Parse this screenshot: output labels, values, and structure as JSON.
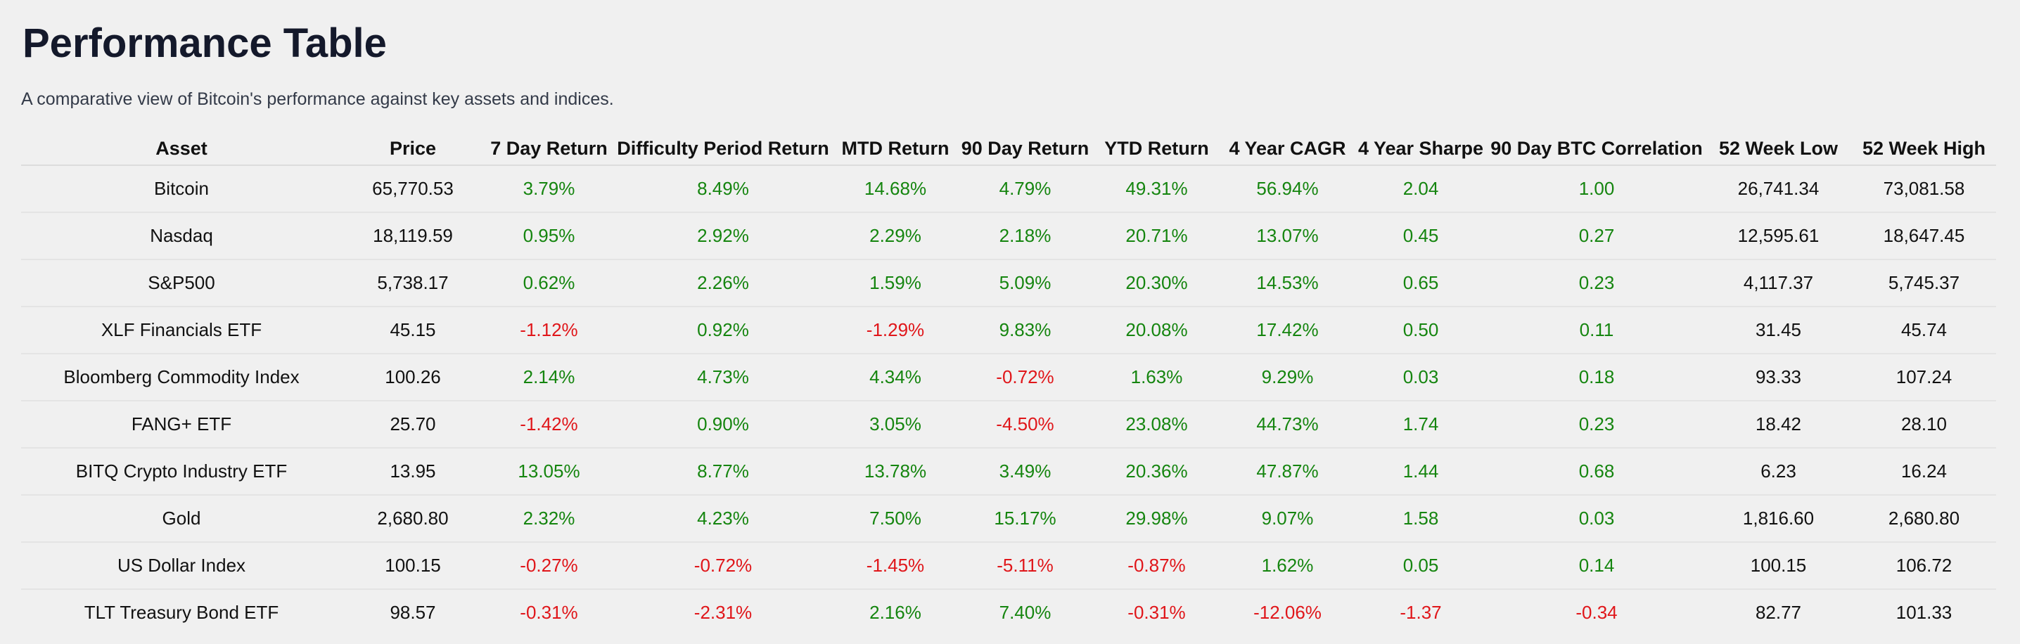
{
  "header": {
    "title": "Performance Table",
    "subtitle": "A comparative view of Bitcoin's performance against key assets and indices."
  },
  "table": {
    "columns": [
      "Asset",
      "Price",
      "7 Day Return",
      "Difficulty Period Return",
      "MTD Return",
      "90 Day Return",
      "YTD Return",
      "4 Year CAGR",
      "4 Year Sharpe",
      "90 Day BTC Correlation",
      "52 Week Low",
      "52 Week High"
    ],
    "rows": [
      [
        "Bitcoin",
        "65,770.53",
        "3.79%",
        "8.49%",
        "14.68%",
        "4.79%",
        "49.31%",
        "56.94%",
        "2.04",
        "1.00",
        "26,741.34",
        "73,081.58"
      ],
      [
        "Nasdaq",
        "18,119.59",
        "0.95%",
        "2.92%",
        "2.29%",
        "2.18%",
        "20.71%",
        "13.07%",
        "0.45",
        "0.27",
        "12,595.61",
        "18,647.45"
      ],
      [
        "S&P500",
        "5,738.17",
        "0.62%",
        "2.26%",
        "1.59%",
        "5.09%",
        "20.30%",
        "14.53%",
        "0.65",
        "0.23",
        "4,117.37",
        "5,745.37"
      ],
      [
        "XLF Financials ETF",
        "45.15",
        "-1.12%",
        "0.92%",
        "-1.29%",
        "9.83%",
        "20.08%",
        "17.42%",
        "0.50",
        "0.11",
        "31.45",
        "45.74"
      ],
      [
        "Bloomberg Commodity Index",
        "100.26",
        "2.14%",
        "4.73%",
        "4.34%",
        "-0.72%",
        "1.63%",
        "9.29%",
        "0.03",
        "0.18",
        "93.33",
        "107.24"
      ],
      [
        "FANG+ ETF",
        "25.70",
        "-1.42%",
        "0.90%",
        "3.05%",
        "-4.50%",
        "23.08%",
        "44.73%",
        "1.74",
        "0.23",
        "18.42",
        "28.10"
      ],
      [
        "BITQ Crypto Industry ETF",
        "13.95",
        "13.05%",
        "8.77%",
        "13.78%",
        "3.49%",
        "20.36%",
        "47.87%",
        "1.44",
        "0.68",
        "6.23",
        "16.24"
      ],
      [
        "Gold",
        "2,680.80",
        "2.32%",
        "4.23%",
        "7.50%",
        "15.17%",
        "29.98%",
        "9.07%",
        "1.58",
        "0.03",
        "1,816.60",
        "2,680.80"
      ],
      [
        "US Dollar Index",
        "100.15",
        "-0.27%",
        "-0.72%",
        "-1.45%",
        "-5.11%",
        "-0.87%",
        "1.62%",
        "0.05",
        "0.14",
        "100.15",
        "106.72"
      ],
      [
        "TLT Treasury Bond ETF",
        "98.57",
        "-0.31%",
        "-2.31%",
        "2.16%",
        "7.40%",
        "-0.31%",
        "-12.06%",
        "-1.37",
        "-0.34",
        "82.77",
        "101.33"
      ]
    ]
  }
}
